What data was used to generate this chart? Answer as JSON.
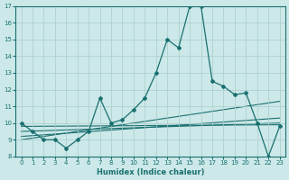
{
  "title": "",
  "xlabel": "Humidex (Indice chaleur)",
  "bg_color": "#cce8e8",
  "line_color": "#1a7070",
  "grid_color": "#aacccc",
  "xlim": [
    -0.5,
    23.5
  ],
  "ylim": [
    8,
    17
  ],
  "xticks": [
    0,
    1,
    2,
    3,
    4,
    5,
    6,
    7,
    8,
    9,
    10,
    11,
    12,
    13,
    14,
    15,
    16,
    17,
    18,
    19,
    20,
    21,
    22,
    23
  ],
  "yticks": [
    8,
    9,
    10,
    11,
    12,
    13,
    14,
    15,
    16,
    17
  ],
  "main_series": {
    "x": [
      0,
      1,
      2,
      3,
      4,
      5,
      6,
      7,
      8,
      9,
      10,
      11,
      12,
      13,
      14,
      15,
      16,
      17,
      18,
      19,
      20,
      21,
      22,
      23
    ],
    "y": [
      10.0,
      9.5,
      9.0,
      9.0,
      8.5,
      9.0,
      9.5,
      11.5,
      10.0,
      10.2,
      10.8,
      11.5,
      13.0,
      15.0,
      14.5,
      17.0,
      17.0,
      12.5,
      12.2,
      11.7,
      11.8,
      10.0,
      8.0,
      9.8
    ]
  },
  "flat_lines": [
    {
      "x0": 0,
      "y0": 9.8,
      "x1": 23,
      "y1": 9.9
    },
    {
      "x0": 0,
      "y0": 9.5,
      "x1": 23,
      "y1": 10.0
    },
    {
      "x0": 0,
      "y0": 9.2,
      "x1": 23,
      "y1": 10.3
    },
    {
      "x0": 0,
      "y0": 9.0,
      "x1": 23,
      "y1": 11.3
    }
  ]
}
